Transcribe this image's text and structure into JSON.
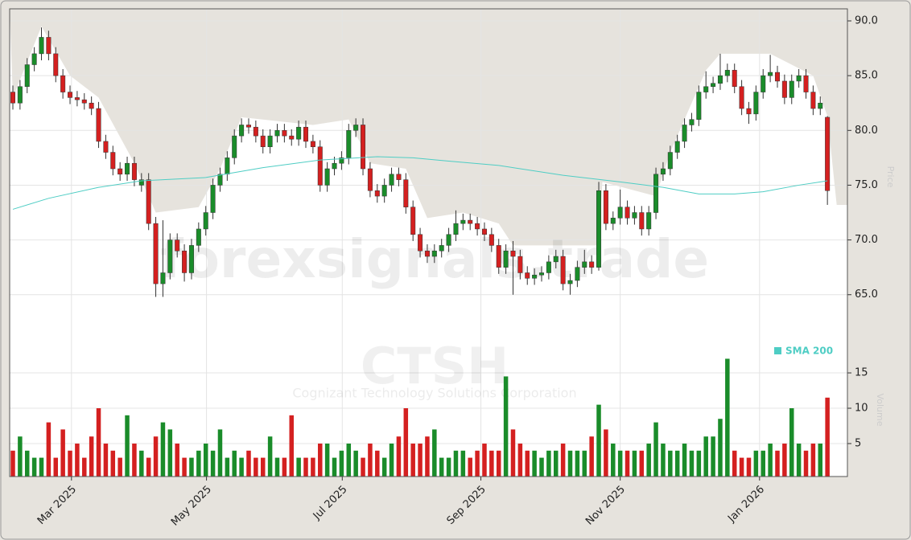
{
  "chart_data": {
    "type": "candlestick",
    "ticker": "CTSH",
    "company": "Cognizant Technology Solutions Corporation",
    "watermark": "forexsignals.trade",
    "ylabel": "Price",
    "y2label": "Volume",
    "up_color": "#1a8c2a",
    "down_color": "#d42020",
    "grid": true,
    "xlim": [
      -0.45,
      116.8
    ],
    "xticks": [
      {
        "value": 8.2,
        "label": "Mar 2025"
      },
      {
        "value": 27.1,
        "label": "May 2025"
      },
      {
        "value": 46.1,
        "label": "Jul 2025"
      },
      {
        "value": 65.5,
        "label": "Sep 2025"
      },
      {
        "value": 85.0,
        "label": "Nov 2025"
      },
      {
        "value": 104.5,
        "label": "Jan 2026"
      }
    ],
    "ylim": [
      48.4,
      91.1
    ],
    "yticks": [
      {
        "value": 65,
        "label": "65.0"
      },
      {
        "value": 70,
        "label": "70.0"
      },
      {
        "value": 75,
        "label": "75.0"
      },
      {
        "value": 80,
        "label": "80.0"
      },
      {
        "value": 85,
        "label": "85.0"
      },
      {
        "value": 90,
        "label": "90.0"
      }
    ],
    "y2lim": [
      0.34,
      66.5
    ],
    "y2ticks": [
      5,
      10,
      15
    ],
    "open": [
      83.5,
      82.5,
      84,
      86,
      87,
      88.5,
      87,
      85,
      83.5,
      83,
      82.8,
      82.5,
      82,
      79,
      78,
      76.5,
      76,
      77,
      75,
      75.5,
      71.5,
      66,
      67,
      70,
      69,
      67,
      69.5,
      71,
      72.5,
      75,
      76,
      77.5,
      79.5,
      80.5,
      80.3,
      79.5,
      78.5,
      79.5,
      80,
      79.5,
      79.2,
      80.3,
      79,
      78.5,
      75,
      76.5,
      77,
      77.5,
      80,
      80.5,
      76.5,
      74.5,
      74,
      75,
      76,
      75.5,
      73,
      70.5,
      69,
      68.5,
      69,
      69.5,
      70.5,
      71.5,
      71.8,
      71.5,
      71,
      70.5,
      69.5,
      67.5,
      69,
      68.5,
      67,
      66.5,
      66.8,
      67,
      68,
      68.5,
      66,
      66.3,
      67.5,
      68,
      67.5,
      74.5,
      71.5,
      72,
      73,
      72,
      72.5,
      71,
      72.5,
      76,
      76.5,
      78,
      79,
      80.5,
      81,
      83.5,
      84,
      84.3,
      85,
      85.5,
      84,
      82,
      81.5,
      83.5,
      85,
      85.3,
      84.5,
      83,
      84.5,
      85,
      83.5,
      82,
      81.2
    ],
    "high": [
      84.1,
      84.6,
      86.6,
      87.6,
      89.4,
      89.1,
      87.6,
      85.6,
      84.1,
      83.6,
      83.4,
      83.1,
      82.6,
      79.6,
      78.6,
      77.1,
      77.6,
      77.6,
      76.1,
      76.1,
      72.1,
      71.8,
      70.6,
      70.6,
      69.6,
      70.1,
      71.6,
      73.1,
      75.6,
      76.6,
      78.1,
      80.1,
      81.1,
      81.1,
      80.9,
      80.1,
      80.1,
      80.6,
      80.6,
      80.1,
      80.9,
      80.9,
      79.6,
      79.1,
      77.1,
      77.6,
      78.1,
      80.6,
      81.1,
      81.1,
      77.1,
      75.1,
      75.6,
      76.6,
      76.6,
      76.1,
      73.6,
      71.1,
      69.6,
      69.6,
      70.1,
      71.1,
      72.7,
      72.4,
      72.4,
      72.1,
      71.6,
      71.1,
      70.1,
      69.6,
      69.9,
      69.1,
      67.6,
      67.4,
      67.6,
      68.6,
      69.1,
      69.1,
      66.9,
      68.1,
      69.1,
      68.6,
      75.3,
      75.1,
      72.6,
      74.6,
      73.6,
      73.1,
      73.1,
      73.1,
      76.6,
      77.1,
      78.6,
      79.6,
      81.1,
      81.6,
      84.1,
      85.4,
      84.9,
      87,
      86.1,
      86.1,
      84.6,
      82.6,
      84.1,
      85.6,
      86.9,
      85.9,
      85.1,
      85.1,
      85.6,
      85.6,
      84.1,
      83.1,
      81.3
    ],
    "low": [
      81.9,
      81.9,
      83.4,
      85.4,
      86.4,
      86.4,
      84.4,
      82.9,
      82.4,
      82.2,
      81.9,
      81.4,
      78.4,
      77.4,
      75.9,
      75.4,
      75.4,
      74.9,
      74.4,
      70.9,
      64.8,
      64.8,
      66.4,
      68.4,
      66.2,
      66.4,
      68.9,
      70.4,
      71.9,
      74.4,
      75.4,
      76.9,
      78.9,
      79.7,
      78.9,
      77.9,
      77.9,
      78.9,
      78.9,
      78.6,
      78.6,
      78.4,
      77.9,
      74.4,
      74.4,
      75.9,
      76.4,
      76.9,
      79.4,
      75.9,
      73.9,
      73.4,
      73.4,
      74.4,
      74.9,
      72.4,
      69.9,
      68.4,
      67.9,
      67.9,
      68.4,
      68.9,
      69.9,
      70.9,
      70.9,
      70.4,
      69.9,
      68.9,
      66.9,
      66.9,
      65,
      66.4,
      65.9,
      65.9,
      66.2,
      66.4,
      67.4,
      65.4,
      65,
      65.7,
      66.9,
      66.9,
      67.2,
      70.9,
      70.9,
      71.4,
      71.4,
      71.4,
      70.4,
      70.4,
      71.9,
      75.4,
      75.9,
      77.4,
      78.4,
      79.9,
      80.4,
      82.9,
      83.4,
      83.7,
      84.4,
      83.4,
      81.4,
      80.6,
      80.9,
      82.9,
      84.4,
      83.9,
      82.4,
      82.4,
      83.9,
      82.9,
      81.4,
      81.4,
      73.2
    ],
    "close": [
      82.5,
      84,
      86,
      87,
      88.5,
      87,
      85,
      83.5,
      83,
      82.8,
      82.5,
      82,
      79,
      78,
      76.5,
      76,
      77,
      75.5,
      75.5,
      71.5,
      66,
      67,
      70,
      69,
      67,
      69.5,
      71,
      72.5,
      75,
      76,
      77.5,
      79.5,
      80.5,
      80.3,
      79.5,
      78.5,
      79.5,
      80,
      79.5,
      79.2,
      80.3,
      79,
      78.5,
      75,
      76.5,
      77,
      77.5,
      80,
      80.5,
      76.5,
      74.5,
      74,
      75,
      76,
      75.5,
      73,
      70.5,
      69,
      68.5,
      69,
      69.5,
      70.5,
      71.5,
      71.8,
      71.5,
      71,
      70.5,
      69.5,
      67.5,
      69,
      68.5,
      67,
      66.5,
      66.8,
      67,
      68,
      68.5,
      66,
      66.3,
      67.5,
      68,
      67.5,
      74.5,
      71.5,
      72,
      73,
      72,
      72.5,
      71,
      72.5,
      76,
      76.5,
      78,
      79,
      80.5,
      81,
      83.5,
      84,
      84.3,
      85,
      85.5,
      84,
      82,
      81.5,
      83.5,
      85,
      85.3,
      84.5,
      83,
      84.5,
      85,
      83.5,
      82,
      82.5,
      74.5
    ],
    "volume": [
      4,
      6,
      4,
      3,
      3,
      8,
      3,
      7,
      4,
      5,
      3,
      6,
      10,
      5,
      4,
      3,
      9,
      5,
      4,
      3,
      6,
      8,
      7,
      5,
      3,
      3,
      4,
      5,
      4,
      7,
      3,
      4,
      3,
      4,
      3,
      3,
      6,
      3,
      3,
      9,
      3,
      3,
      3,
      5,
      5,
      3,
      4,
      5,
      4,
      3,
      5,
      4,
      3,
      5,
      6,
      10,
      5,
      5,
      6,
      7,
      3,
      3,
      4,
      4,
      3,
      4,
      5,
      4,
      4,
      14.5,
      7,
      5,
      4,
      4,
      3,
      4,
      4,
      5,
      4,
      4,
      4,
      6,
      10.5,
      7,
      5,
      4,
      4,
      4,
      4,
      5,
      8,
      5,
      4,
      4,
      5,
      4,
      4,
      6,
      6,
      8.5,
      17,
      4,
      3,
      3,
      4,
      4,
      5,
      4,
      5,
      10,
      5,
      4,
      5,
      5,
      11.5
    ],
    "sma": {
      "name": "SMA 200",
      "color": "#4ecdc4",
      "x": [
        0,
        5,
        12,
        18,
        27,
        35,
        43,
        51,
        56,
        61,
        68,
        77,
        85,
        91,
        96,
        101,
        105,
        110,
        114
      ],
      "values": [
        72.8,
        73.8,
        74.8,
        75.4,
        75.7,
        76.6,
        77.3,
        77.6,
        77.5,
        77.2,
        76.8,
        75.9,
        75.3,
        74.8,
        74.2,
        74.2,
        74.4,
        75.0,
        75.4
      ]
    },
    "shade": {
      "color": "#e6e3dd",
      "x": [
        0,
        4,
        8,
        12,
        17,
        20,
        26,
        29,
        32,
        42,
        47,
        50,
        55,
        58,
        63,
        68,
        70,
        82,
        82.5,
        90,
        92,
        97,
        99,
        106,
        112,
        114,
        115.3,
        116.8
      ],
      "values": [
        83,
        89.5,
        85,
        83,
        77,
        72.5,
        73,
        76.5,
        81.2,
        80.5,
        81,
        77,
        76.5,
        72,
        72.5,
        71.5,
        69.5,
        69.5,
        75.3,
        74,
        78,
        85.5,
        87,
        87,
        85,
        81.3,
        73.2,
        73.2
      ]
    }
  }
}
